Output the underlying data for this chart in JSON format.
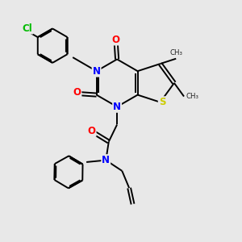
{
  "bg_color": "#e8e8e8",
  "atom_colors": {
    "N": "#0000ff",
    "O": "#ff0000",
    "S": "#cccc00",
    "Cl": "#00bb00",
    "C": "#000000"
  },
  "bond_color": "#000000",
  "bond_width": 1.4
}
